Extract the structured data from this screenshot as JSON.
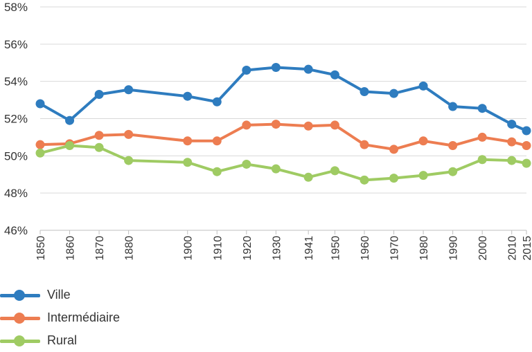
{
  "chart_data": {
    "type": "line",
    "title": "",
    "xlabel": "",
    "ylabel": "",
    "x": [
      1850,
      1860,
      1870,
      1880,
      1900,
      1910,
      1920,
      1930,
      1941,
      1950,
      1960,
      1970,
      1980,
      1990,
      2000,
      2010,
      2015
    ],
    "x_tick_labels": [
      "1850",
      "1860",
      "1870",
      "1880",
      "1900",
      "1910",
      "1920",
      "1930",
      "1941",
      "1950",
      "1960",
      "1970",
      "1980",
      "1990",
      "2000",
      "2010",
      "2015"
    ],
    "ylim": [
      46,
      58
    ],
    "y_ticks": [
      46,
      48,
      50,
      52,
      54,
      56,
      58
    ],
    "y_tick_labels": [
      "46%",
      "48%",
      "50%",
      "52%",
      "54%",
      "56%",
      "58%"
    ],
    "grid": "horizontal",
    "legend_position": "bottom-left",
    "series": [
      {
        "name": "Ville",
        "color": "#2e7cbf",
        "values": [
          52.8,
          51.9,
          53.3,
          53.55,
          53.2,
          52.9,
          54.6,
          54.75,
          54.65,
          54.35,
          53.45,
          53.35,
          53.75,
          52.65,
          52.55,
          51.7,
          51.35
        ]
      },
      {
        "name": "Intermédiaire",
        "color": "#ed7d51",
        "values": [
          50.6,
          50.65,
          51.1,
          51.15,
          50.8,
          50.8,
          51.65,
          51.7,
          51.6,
          51.65,
          50.6,
          50.35,
          50.8,
          50.55,
          51.0,
          50.75,
          50.55
        ]
      },
      {
        "name": "Rural",
        "color": "#9fcb63",
        "values": [
          50.15,
          50.55,
          50.45,
          49.75,
          49.65,
          49.15,
          49.55,
          49.3,
          48.85,
          49.2,
          48.7,
          48.8,
          48.95,
          49.15,
          49.8,
          49.75,
          49.6
        ]
      }
    ]
  }
}
